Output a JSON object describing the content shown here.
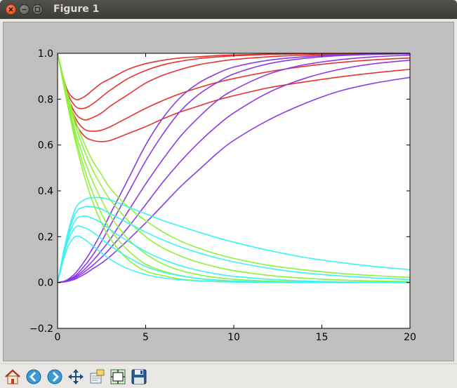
{
  "window": {
    "title": "Figure 1"
  },
  "colors": {
    "red": "#e8332e",
    "purple": "#8b3be6",
    "green": "#8ef23a",
    "cyan": "#3cf2f2"
  },
  "toolbar": {
    "buttons": [
      {
        "name": "home-button",
        "icon": "home-icon"
      },
      {
        "name": "back-button",
        "icon": "back-arrow-icon"
      },
      {
        "name": "forward-button",
        "icon": "forward-arrow-icon"
      },
      {
        "name": "pan-button",
        "icon": "move-icon"
      },
      {
        "name": "zoom-button",
        "icon": "zoom-rect-icon"
      },
      {
        "name": "configure-subplots-button",
        "icon": "subplots-icon"
      },
      {
        "name": "save-button",
        "icon": "floppy-disk-icon"
      }
    ]
  },
  "chart_data": {
    "type": "line",
    "xlim": [
      0,
      20
    ],
    "ylim": [
      -0.2,
      1.0
    ],
    "xticks": [
      "0",
      "5",
      "10",
      "15",
      "20"
    ],
    "yticks": [
      "−0.2",
      "0.0",
      "0.2",
      "0.4",
      "0.6",
      "0.8",
      "1.0"
    ],
    "grid": false,
    "x": [
      0,
      0.5,
      1,
      1.5,
      2,
      2.5,
      3,
      4,
      5,
      6,
      7,
      8,
      9,
      10,
      12,
      14,
      16,
      18,
      20
    ],
    "series": [
      {
        "color": "red",
        "values": [
          1.0,
          0.85,
          0.8,
          0.81,
          0.84,
          0.87,
          0.89,
          0.93,
          0.955,
          0.97,
          0.98,
          0.985,
          0.99,
          0.993,
          0.996,
          0.998,
          0.999,
          1.0,
          1.0
        ]
      },
      {
        "color": "red",
        "values": [
          1.0,
          0.84,
          0.77,
          0.76,
          0.78,
          0.81,
          0.84,
          0.89,
          0.925,
          0.95,
          0.966,
          0.977,
          0.984,
          0.989,
          0.995,
          0.998,
          0.999,
          1.0,
          1.0
        ]
      },
      {
        "color": "red",
        "values": [
          1.0,
          0.83,
          0.74,
          0.71,
          0.72,
          0.74,
          0.77,
          0.82,
          0.87,
          0.905,
          0.93,
          0.95,
          0.963,
          0.973,
          0.985,
          0.992,
          0.996,
          0.998,
          0.999
        ]
      },
      {
        "color": "red",
        "values": [
          1.0,
          0.83,
          0.72,
          0.67,
          0.66,
          0.665,
          0.68,
          0.72,
          0.76,
          0.795,
          0.825,
          0.85,
          0.872,
          0.89,
          0.92,
          0.943,
          0.96,
          0.972,
          0.98
        ]
      },
      {
        "color": "red",
        "values": [
          1.0,
          0.82,
          0.7,
          0.64,
          0.62,
          0.615,
          0.62,
          0.65,
          0.68,
          0.715,
          0.745,
          0.77,
          0.795,
          0.815,
          0.85,
          0.875,
          0.897,
          0.915,
          0.93
        ]
      },
      {
        "color": "purple",
        "values": [
          0.0,
          0.01,
          0.04,
          0.09,
          0.15,
          0.22,
          0.3,
          0.45,
          0.6,
          0.72,
          0.81,
          0.87,
          0.91,
          0.94,
          0.97,
          0.985,
          0.993,
          0.997,
          0.999
        ]
      },
      {
        "color": "purple",
        "values": [
          0.0,
          0.008,
          0.03,
          0.07,
          0.12,
          0.18,
          0.25,
          0.39,
          0.53,
          0.65,
          0.75,
          0.82,
          0.87,
          0.91,
          0.955,
          0.978,
          0.99,
          0.995,
          0.998
        ]
      },
      {
        "color": "purple",
        "values": [
          0.0,
          0.006,
          0.025,
          0.055,
          0.095,
          0.14,
          0.19,
          0.31,
          0.43,
          0.54,
          0.64,
          0.72,
          0.79,
          0.84,
          0.91,
          0.95,
          0.972,
          0.985,
          0.992
        ]
      },
      {
        "color": "purple",
        "values": [
          0.0,
          0.005,
          0.02,
          0.045,
          0.075,
          0.11,
          0.15,
          0.24,
          0.34,
          0.44,
          0.53,
          0.61,
          0.68,
          0.74,
          0.83,
          0.89,
          0.93,
          0.955,
          0.97
        ]
      },
      {
        "color": "purple",
        "values": [
          0.0,
          0.004,
          0.015,
          0.035,
          0.06,
          0.085,
          0.115,
          0.185,
          0.26,
          0.34,
          0.42,
          0.49,
          0.56,
          0.62,
          0.71,
          0.78,
          0.835,
          0.87,
          0.895
        ]
      },
      {
        "color": "green",
        "values": [
          1.0,
          0.8,
          0.62,
          0.47,
          0.35,
          0.26,
          0.19,
          0.1,
          0.05,
          0.03,
          0.015,
          0.008,
          0.004,
          0.002,
          0.001,
          0.0,
          0.0,
          0.0,
          0.0
        ]
      },
      {
        "color": "green",
        "values": [
          1.0,
          0.81,
          0.64,
          0.5,
          0.39,
          0.3,
          0.23,
          0.14,
          0.08,
          0.05,
          0.03,
          0.017,
          0.01,
          0.006,
          0.002,
          0.001,
          0.0,
          0.0,
          0.0
        ]
      },
      {
        "color": "green",
        "values": [
          1.0,
          0.82,
          0.66,
          0.54,
          0.44,
          0.36,
          0.29,
          0.19,
          0.125,
          0.08,
          0.052,
          0.034,
          0.022,
          0.014,
          0.006,
          0.003,
          0.001,
          0.0,
          0.0
        ]
      },
      {
        "color": "green",
        "values": [
          1.0,
          0.83,
          0.69,
          0.58,
          0.49,
          0.42,
          0.36,
          0.27,
          0.2,
          0.15,
          0.115,
          0.088,
          0.068,
          0.052,
          0.031,
          0.019,
          0.011,
          0.007,
          0.004
        ]
      },
      {
        "color": "green",
        "values": [
          1.0,
          0.84,
          0.71,
          0.61,
          0.53,
          0.47,
          0.41,
          0.33,
          0.27,
          0.22,
          0.18,
          0.15,
          0.125,
          0.105,
          0.075,
          0.055,
          0.04,
          0.03,
          0.022
        ]
      },
      {
        "color": "cyan",
        "values": [
          0.0,
          0.14,
          0.2,
          0.19,
          0.16,
          0.13,
          0.1,
          0.06,
          0.035,
          0.02,
          0.012,
          0.007,
          0.004,
          0.002,
          0.001,
          0.0,
          0.0,
          0.0,
          0.0
        ]
      },
      {
        "color": "cyan",
        "values": [
          0.0,
          0.16,
          0.24,
          0.24,
          0.22,
          0.19,
          0.16,
          0.11,
          0.07,
          0.045,
          0.029,
          0.018,
          0.011,
          0.007,
          0.003,
          0.001,
          0.0,
          0.0,
          0.0
        ]
      },
      {
        "color": "cyan",
        "values": [
          0.0,
          0.17,
          0.27,
          0.29,
          0.28,
          0.26,
          0.23,
          0.18,
          0.135,
          0.1,
          0.073,
          0.053,
          0.038,
          0.027,
          0.014,
          0.007,
          0.003,
          0.002,
          0.001
        ]
      },
      {
        "color": "cyan",
        "values": [
          0.0,
          0.18,
          0.3,
          0.33,
          0.33,
          0.32,
          0.3,
          0.26,
          0.22,
          0.185,
          0.155,
          0.13,
          0.108,
          0.09,
          0.062,
          0.042,
          0.029,
          0.02,
          0.013
        ]
      },
      {
        "color": "cyan",
        "values": [
          0.0,
          0.19,
          0.32,
          0.36,
          0.37,
          0.37,
          0.36,
          0.33,
          0.3,
          0.27,
          0.245,
          0.22,
          0.197,
          0.176,
          0.14,
          0.11,
          0.088,
          0.07,
          0.056
        ]
      }
    ]
  }
}
